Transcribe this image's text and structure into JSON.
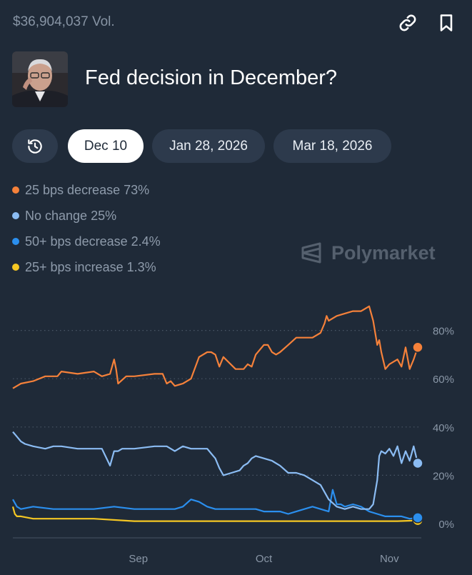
{
  "header": {
    "volume": "$36,904,037 Vol.",
    "title": "Fed decision in December?",
    "link_icon": "link-icon",
    "bookmark_icon": "bookmark-icon"
  },
  "tabs": {
    "history_icon": "history-icon",
    "items": [
      "Dec 10",
      "Jan 28, 2026",
      "Mar 18, 2026"
    ],
    "active": "Dec 10"
  },
  "legend": [
    {
      "label": "25 bps decrease 73%",
      "color": "#f5813a"
    },
    {
      "label": "No change 25%",
      "color": "#8bbcf3"
    },
    {
      "label": "50+ bps decrease 2.4%",
      "color": "#2b8fee"
    },
    {
      "label": "25+ bps increase 1.3%",
      "color": "#f5c723"
    }
  ],
  "watermark": "Polymarket",
  "chart_data": {
    "type": "line",
    "ylim": [
      0,
      100
    ],
    "xlim": [
      0,
      100
    ],
    "y_ticks": [
      {
        "value": 80,
        "label": "80%"
      },
      {
        "value": 60,
        "label": "60%"
      },
      {
        "value": 40,
        "label": "40%"
      },
      {
        "value": 20,
        "label": "20%"
      },
      {
        "value": 0,
        "label": "0%"
      }
    ],
    "x_ticks": [
      {
        "value": 31,
        "label": "Sep"
      },
      {
        "value": 62,
        "label": "Oct"
      },
      {
        "value": 93,
        "label": "Nov"
      }
    ],
    "series": [
      {
        "name": "25 bps decrease",
        "color": "#f5813a",
        "last": 73,
        "x": [
          0,
          1,
          2,
          5,
          8,
          11,
          12,
          16,
          20,
          22,
          24,
          25,
          25.5,
          26,
          28,
          30,
          35,
          37,
          38,
          39,
          40,
          42,
          44,
          46,
          48,
          49,
          50,
          51,
          52,
          55,
          57,
          58,
          59,
          60,
          62,
          63,
          64,
          65,
          66,
          68,
          70,
          72,
          74,
          76,
          77,
          77.5,
          78,
          79,
          80,
          82,
          84,
          86,
          88,
          89,
          90,
          90.5,
          91,
          92,
          93,
          95,
          96,
          97,
          98,
          99,
          100
        ],
        "y": [
          56,
          57,
          58,
          59,
          61,
          61,
          63,
          62,
          63,
          61,
          62,
          68,
          64,
          58,
          61,
          61,
          62,
          62,
          58,
          59,
          57,
          58,
          60,
          69,
          71,
          71,
          70,
          65,
          69,
          64,
          64,
          66,
          65,
          70,
          74,
          74,
          71,
          70,
          71,
          74,
          77,
          77,
          77,
          79,
          83,
          86,
          84,
          85,
          86,
          87,
          88,
          88,
          90,
          84,
          74,
          76,
          71,
          64,
          66,
          68,
          65,
          73,
          64,
          68,
          73
        ]
      },
      {
        "name": "No change",
        "color": "#8bbcf3",
        "last": 25,
        "x": [
          0,
          1,
          2,
          3,
          5,
          8,
          10,
          12,
          16,
          20,
          22,
          24,
          25,
          26,
          27,
          30,
          35,
          38,
          40,
          42,
          44,
          46,
          48,
          49,
          50,
          51,
          52,
          54,
          56,
          57,
          58,
          59,
          60,
          62,
          64,
          66,
          68,
          70,
          72,
          74,
          76,
          78,
          80,
          82,
          84,
          86,
          88,
          89,
          90,
          90.5,
          91,
          92,
          93,
          94,
          95,
          96,
          97,
          98,
          99,
          100
        ],
        "y": [
          38,
          36,
          34,
          33,
          32,
          31,
          32,
          32,
          31,
          31,
          31,
          24,
          30,
          30,
          31,
          31,
          32,
          32,
          30,
          32,
          31,
          31,
          31,
          29,
          27,
          23,
          20,
          21,
          22,
          24,
          25,
          27,
          28,
          27,
          26,
          24,
          21,
          21,
          20,
          18,
          16,
          10,
          7,
          6,
          7,
          6,
          6,
          8,
          18,
          28,
          30,
          29,
          31,
          28,
          32,
          25,
          30,
          26,
          32,
          25
        ]
      },
      {
        "name": "50+ bps decrease",
        "color": "#2b8fee",
        "last": 2.4,
        "x": [
          0,
          1,
          2,
          5,
          10,
          15,
          20,
          25,
          30,
          35,
          40,
          42,
          44,
          46,
          48,
          50,
          52,
          55,
          58,
          60,
          62,
          64,
          66,
          68,
          70,
          72,
          74,
          76,
          78,
          79,
          80,
          81,
          82,
          84,
          86,
          88,
          90,
          92,
          94,
          96,
          98,
          100
        ],
        "y": [
          10,
          7,
          6,
          7,
          6,
          6,
          6,
          7,
          6,
          6,
          6,
          7,
          10,
          9,
          7,
          6,
          6,
          6,
          6,
          6,
          5,
          5,
          5,
          4,
          5,
          6,
          7,
          6,
          5,
          14,
          8,
          8,
          7,
          8,
          7,
          5,
          4,
          3,
          3,
          3,
          2,
          2.4
        ]
      },
      {
        "name": "25+ bps increase",
        "color": "#f5c723",
        "last": 1.3,
        "x": [
          0,
          0.5,
          1,
          2,
          5,
          10,
          15,
          20,
          30,
          40,
          50,
          60,
          70,
          80,
          90,
          95,
          100
        ],
        "y": [
          7,
          4,
          3,
          3,
          2,
          2,
          2,
          2,
          1,
          1,
          1,
          1,
          1,
          1,
          1,
          1,
          1.3
        ]
      }
    ]
  }
}
